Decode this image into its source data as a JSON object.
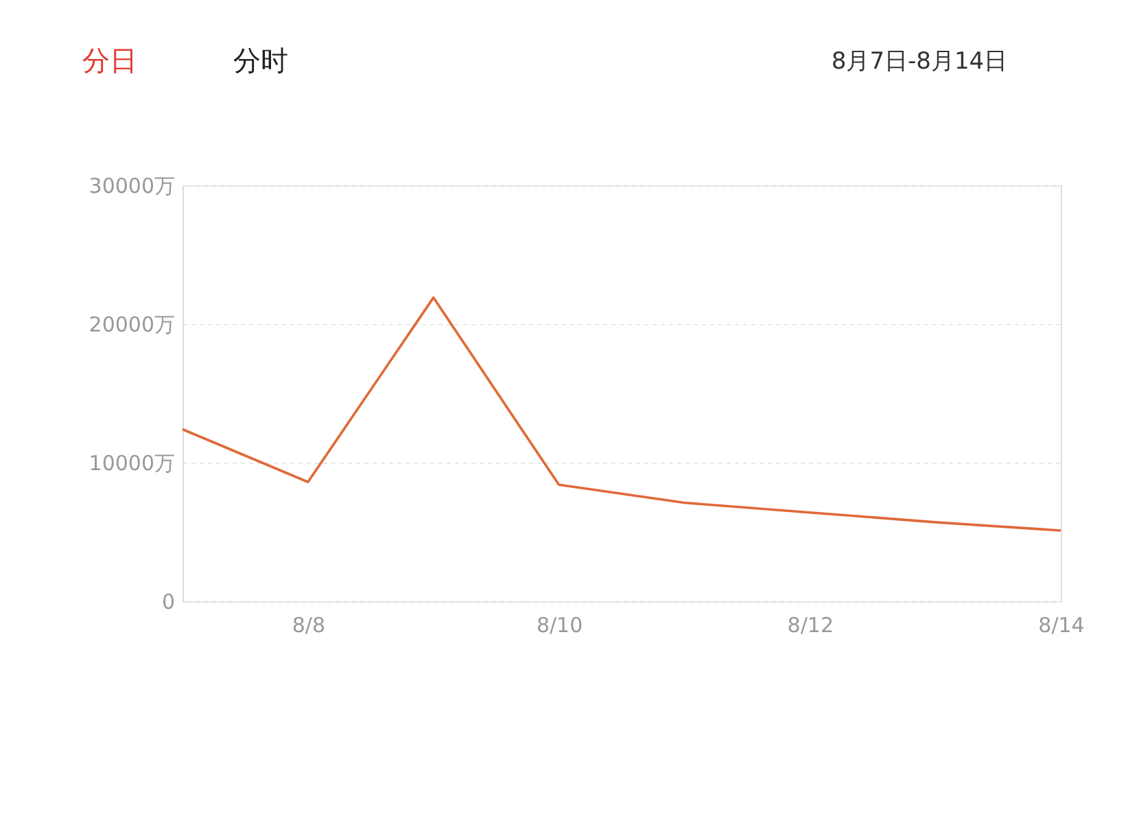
{
  "chart_data": {
    "type": "line",
    "annotations": [
      "分日",
      "分时",
      "8月7日-8月14日"
    ],
    "categories": [
      null,
      "8/8",
      null,
      "8/10",
      null,
      "8/12",
      null,
      "8/14"
    ],
    "series": [
      {
        "color": "#e0693a",
        "values": [
          12400,
          8600,
          21900,
          8400,
          7100,
          6400,
          5700,
          5100
        ]
      }
    ],
    "ylim": [
      0,
      30000
    ],
    "yticks": [
      0,
      {
        "value": 10000,
        "label": "10000万"
      },
      {
        "value": 20000,
        "label": "20000万"
      },
      {
        "value": 30000,
        "label": "30000万"
      }
    ],
    "grid": "y",
    "marker": "none",
    "legend": false
  }
}
